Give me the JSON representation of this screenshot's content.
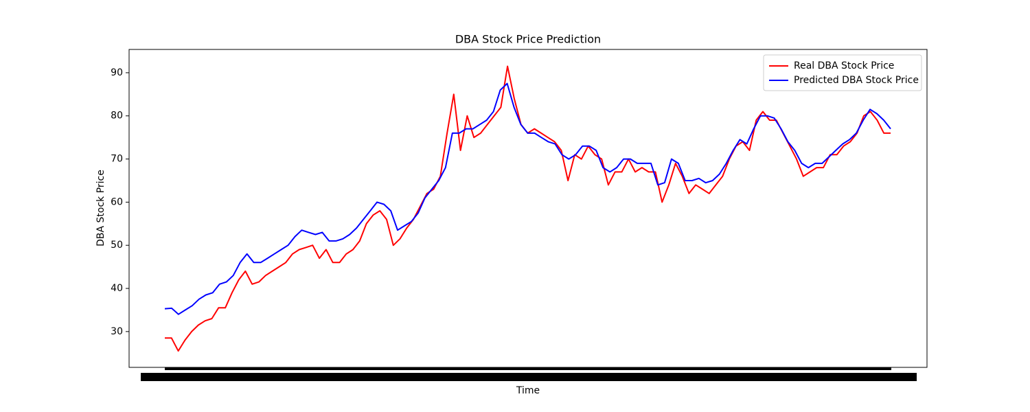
{
  "chart_data": {
    "type": "line",
    "title": "DBA Stock Price Prediction",
    "xlabel": "Time",
    "ylabel": "DBA Stock Price",
    "ylim": [
      21.7,
      95.4
    ],
    "yticks": [
      30,
      40,
      50,
      60,
      70,
      80,
      90
    ],
    "legend": "upper right",
    "series": [
      {
        "name": "Real DBA Stock Price",
        "color": "#ff0000",
        "values": [
          28.5,
          28.5,
          25.5,
          28,
          30,
          31.5,
          32.5,
          33,
          35.5,
          35.5,
          39,
          42,
          44,
          41,
          41.5,
          43,
          44,
          45,
          46,
          48,
          49,
          49.5,
          50,
          47,
          49,
          46,
          46,
          48,
          49,
          51,
          55,
          57,
          58,
          56,
          50,
          51.5,
          54,
          56,
          59,
          62,
          63,
          66,
          76,
          85,
          72,
          80,
          75,
          76,
          78,
          80,
          82,
          91.5,
          84,
          78,
          76,
          77,
          76,
          75,
          74,
          72,
          65,
          71,
          70,
          73,
          71,
          70,
          64,
          67,
          67,
          70,
          67,
          68,
          67,
          67,
          60,
          64,
          69,
          66,
          62,
          64,
          63,
          62,
          64,
          66,
          70,
          73,
          74,
          72,
          79,
          81,
          79,
          79,
          76,
          73,
          70,
          66,
          67,
          68,
          68,
          71,
          71,
          73,
          74,
          76,
          80,
          81,
          79,
          76,
          76
        ]
      },
      {
        "name": "Predicted DBA Stock Price",
        "color": "#0000ff",
        "values": [
          35.3,
          35.4,
          34,
          35,
          36,
          37.5,
          38.5,
          39,
          41,
          41.5,
          43,
          46,
          48,
          46,
          46,
          47,
          48,
          49,
          50,
          52,
          53.5,
          53,
          52.5,
          53,
          51,
          51,
          51.5,
          52.5,
          54,
          56,
          58,
          60,
          59.5,
          58,
          53.5,
          54.5,
          55.5,
          57.5,
          61,
          63,
          65,
          68,
          76,
          76,
          77,
          77,
          78,
          79,
          81,
          86,
          87.5,
          82,
          78,
          76,
          76,
          75,
          74,
          73.5,
          71,
          70,
          71,
          73,
          73,
          72,
          68,
          67,
          68,
          70,
          70,
          69,
          69,
          69,
          64,
          64.5,
          70,
          69,
          65,
          65,
          65.5,
          64.5,
          65,
          66.5,
          69,
          72,
          74.5,
          73.5,
          77,
          80,
          80,
          79.5,
          77,
          74,
          72,
          69,
          68,
          69,
          69,
          70.5,
          72,
          73.5,
          74.5,
          76,
          79,
          81.5,
          80.5,
          79,
          77
        ]
      }
    ]
  }
}
